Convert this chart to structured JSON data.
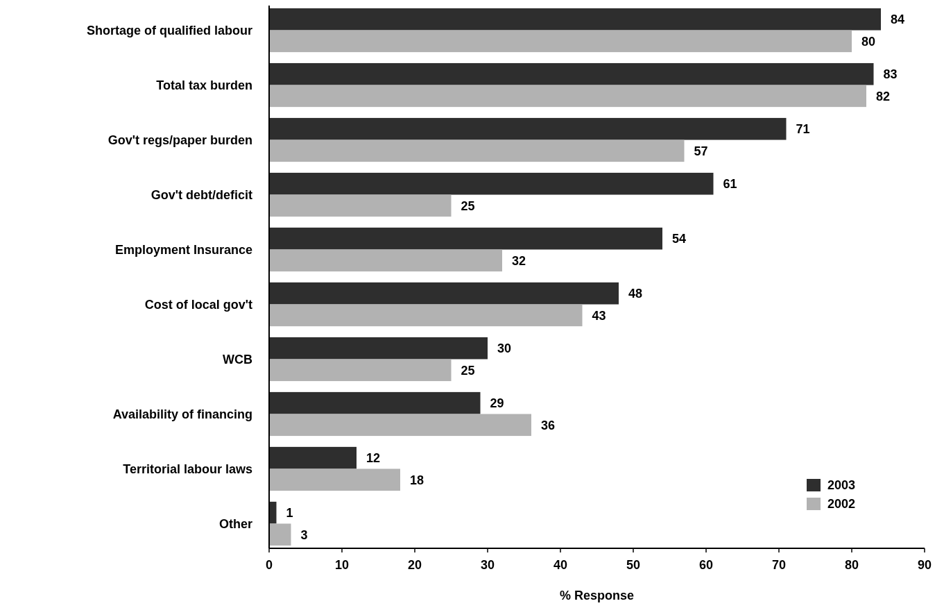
{
  "chart_data": {
    "type": "bar",
    "orientation": "horizontal",
    "xlabel": "% Response",
    "categories": [
      "Shortage of qualified labour",
      "Total tax burden",
      "Gov't regs/paper burden",
      "Gov't debt/deficit",
      "Employment Insurance",
      "Cost of local gov't",
      "WCB",
      "Availability of financing",
      "Territorial labour laws",
      "Other"
    ],
    "series": [
      {
        "name": "2003",
        "color": "#2e2e2e",
        "values": [
          84,
          83,
          71,
          61,
          54,
          48,
          30,
          29,
          12,
          1
        ]
      },
      {
        "name": "2002",
        "color": "#b2b2b2",
        "values": [
          80,
          82,
          57,
          25,
          32,
          43,
          25,
          36,
          18,
          3
        ]
      }
    ],
    "xlim": [
      0,
      90
    ],
    "xticks": [
      0,
      10,
      20,
      30,
      40,
      50,
      60,
      70,
      80,
      90
    ],
    "data_labels": true,
    "legend": "bottom right",
    "grid": false
  }
}
